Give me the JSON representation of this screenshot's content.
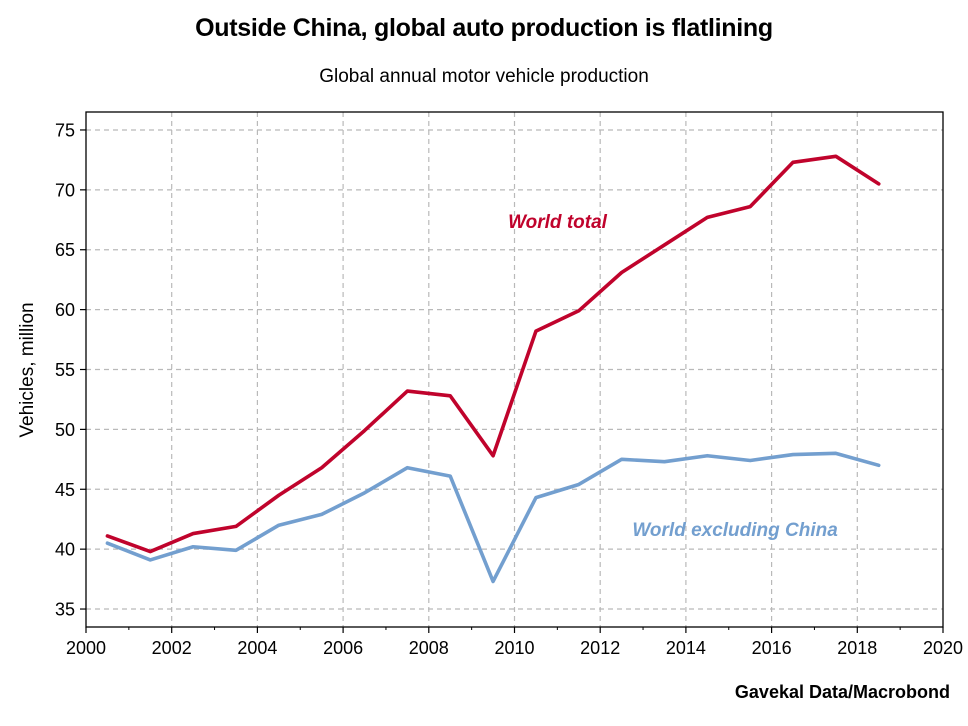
{
  "title": "Outside China, global auto production is flatlining",
  "subtitle": "Global annual motor vehicle production",
  "source": "Gavekal Data/Macrobond",
  "colors": {
    "world_total": "#c0032c",
    "world_ex_china": "#739fcf",
    "grid": "#b9b9b9",
    "frame": "#000000"
  },
  "chart_data": {
    "type": "line",
    "ylabel": "Vehicles, million",
    "xlim": [
      2000,
      2020
    ],
    "ylim": [
      33.5,
      76.5
    ],
    "x_ticks": [
      2000,
      2002,
      2004,
      2006,
      2008,
      2010,
      2012,
      2014,
      2016,
      2018,
      2020
    ],
    "y_ticks": [
      35,
      40,
      45,
      50,
      55,
      60,
      65,
      70,
      75
    ],
    "grid": true,
    "series": [
      {
        "name": "World total",
        "color": "#c0032c",
        "x": [
          2000.5,
          2001.5,
          2002.5,
          2003.5,
          2004.5,
          2005.5,
          2006.5,
          2007.5,
          2008.5,
          2009.5,
          2010.5,
          2011.5,
          2012.5,
          2013.5,
          2014.5,
          2015.5,
          2016.5,
          2017.5,
          2018.5
        ],
        "values": [
          41.1,
          39.8,
          41.3,
          41.9,
          44.5,
          46.8,
          49.9,
          53.2,
          52.8,
          47.8,
          58.2,
          59.9,
          63.1,
          65.4,
          67.7,
          68.6,
          72.3,
          72.8,
          70.5
        ]
      },
      {
        "name": "World excluding China",
        "color": "#739fcf",
        "x": [
          2000.5,
          2001.5,
          2002.5,
          2003.5,
          2004.5,
          2005.5,
          2006.5,
          2007.5,
          2008.5,
          2009.5,
          2010.5,
          2011.5,
          2012.5,
          2013.5,
          2014.5,
          2015.5,
          2016.5,
          2017.5,
          2018.5
        ],
        "values": [
          40.5,
          39.1,
          40.2,
          39.9,
          42.0,
          42.9,
          44.7,
          46.8,
          46.1,
          37.3,
          44.3,
          45.4,
          47.5,
          47.3,
          47.8,
          47.4,
          47.9,
          48.0,
          47.0
        ]
      }
    ],
    "annotations": [
      {
        "text": "World total",
        "color": "#c0032c",
        "x": 2009.85,
        "y": 67.4
      },
      {
        "text": "World excluding China",
        "color": "#739fcf",
        "x": 2012.75,
        "y": 41.7
      }
    ]
  }
}
